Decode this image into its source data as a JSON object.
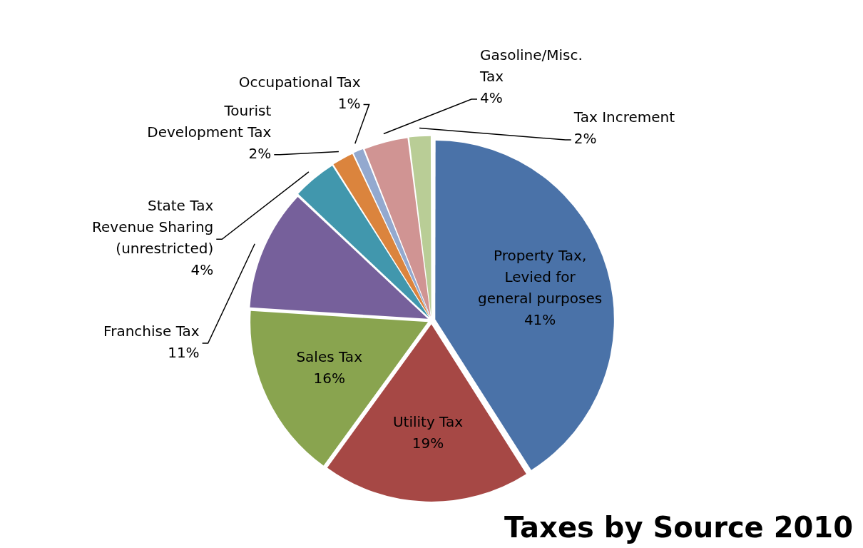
{
  "chart_data": {
    "type": "pie",
    "title": "Taxes by Source 2010",
    "categories": [
      "Property Tax, Levied for general purposes",
      "Utility Tax",
      "Sales Tax",
      "Franchise Tax",
      "State Tax Revenue Sharing (unrestricted)",
      "Tourist Development Tax",
      "Occupational Tax",
      "Gasoline/Misc. Tax",
      "Tax Increment"
    ],
    "values": [
      41,
      19,
      16,
      11,
      4,
      2,
      1,
      4,
      2
    ],
    "value_labels": [
      "41%",
      "19%",
      "16%",
      "11%",
      "4%",
      "2%",
      "1%",
      "4%",
      "2%"
    ],
    "colors": [
      "#4a72a8",
      "#a64845",
      "#89a44f",
      "#76609b",
      "#4197ad",
      "#db843d",
      "#93a9cf",
      "#d09493",
      "#b9cd96"
    ],
    "legend": false
  }
}
